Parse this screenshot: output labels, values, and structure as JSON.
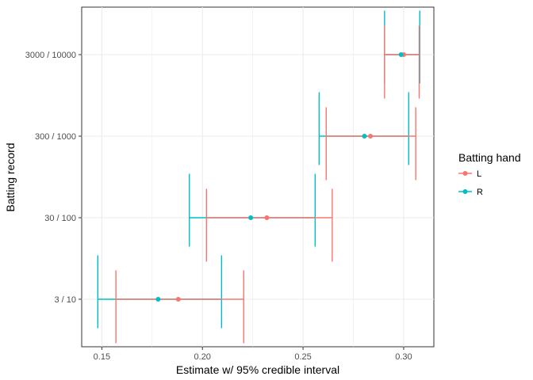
{
  "chart_data": {
    "type": "interval",
    "xlabel": "Estimate w/ 95% credible interval",
    "ylabel": "Batting record",
    "xlim": [
      0.14,
      0.315
    ],
    "x_ticks": [
      0.15,
      0.2,
      0.25,
      0.3
    ],
    "x_tick_labels": [
      "0.15",
      "0.20",
      "0.25",
      "0.30"
    ],
    "categories": [
      "3 / 10",
      "30 / 100",
      "300 / 1000",
      "3000 / 10000"
    ],
    "grid": true,
    "legend": {
      "title": "Batting hand",
      "position": "right"
    },
    "series": [
      {
        "name": "L",
        "color": "#F8766D",
        "estimate": [
          0.188,
          0.232,
          0.2835,
          0.3
        ],
        "lower": [
          0.157,
          0.202,
          0.2615,
          0.2905
        ],
        "upper": [
          0.2205,
          0.2645,
          0.306,
          0.3077
        ]
      },
      {
        "name": "R",
        "color": "#00BFC4",
        "estimate": [
          0.178,
          0.224,
          0.2805,
          0.2987
        ],
        "lower": [
          0.148,
          0.1935,
          0.258,
          0.2905
        ],
        "upper": [
          0.2095,
          0.256,
          0.3025,
          0.308
        ]
      }
    ]
  }
}
